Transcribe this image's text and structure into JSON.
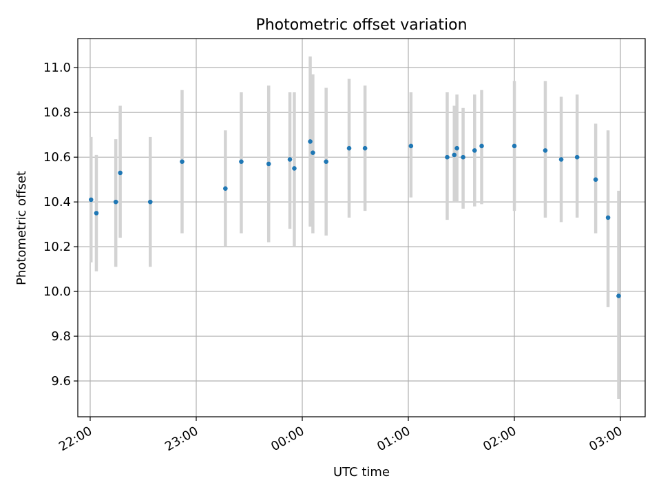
{
  "chart_data": {
    "type": "scatter",
    "title": "Photometric offset variation",
    "xlabel": "UTC time",
    "ylabel": "Photometric offset",
    "xlim": [
      "21:53",
      "03:14"
    ],
    "ylim": [
      9.44,
      11.13
    ],
    "grid": true,
    "x_ticks": [
      "22:00",
      "23:00",
      "00:00",
      "01:00",
      "02:00",
      "03:00"
    ],
    "y_ticks": [
      "9.6",
      "9.8",
      "10.0",
      "10.2",
      "10.4",
      "10.6",
      "10.8",
      "11.0"
    ],
    "colors": {
      "point": "#1f77b4",
      "errorbar": "#d3d3d3",
      "grid": "#b0b0b0"
    },
    "series": [
      {
        "points": [
          {
            "t": "22:00:30",
            "y": 10.41,
            "lo": 10.13,
            "hi": 10.69
          },
          {
            "t": "22:03:30",
            "y": 10.35,
            "lo": 10.09,
            "hi": 10.61
          },
          {
            "t": "22:14:30",
            "y": 10.4,
            "lo": 10.11,
            "hi": 10.68
          },
          {
            "t": "22:17:00",
            "y": 10.53,
            "lo": 10.24,
            "hi": 10.83
          },
          {
            "t": "22:34:00",
            "y": 10.4,
            "lo": 10.11,
            "hi": 10.69
          },
          {
            "t": "22:52:00",
            "y": 10.58,
            "lo": 10.26,
            "hi": 10.9
          },
          {
            "t": "23:16:30",
            "y": 10.46,
            "lo": 10.2,
            "hi": 10.72
          },
          {
            "t": "23:25:30",
            "y": 10.58,
            "lo": 10.26,
            "hi": 10.89
          },
          {
            "t": "23:41:00",
            "y": 10.57,
            "lo": 10.22,
            "hi": 10.92
          },
          {
            "t": "23:53:00",
            "y": 10.59,
            "lo": 10.28,
            "hi": 10.89
          },
          {
            "t": "23:55:30",
            "y": 10.55,
            "lo": 10.2,
            "hi": 10.89
          },
          {
            "t": "00:04:30",
            "y": 10.67,
            "lo": 10.29,
            "hi": 11.05
          },
          {
            "t": "00:06:00",
            "y": 10.62,
            "lo": 10.26,
            "hi": 10.97
          },
          {
            "t": "00:13:30",
            "y": 10.58,
            "lo": 10.25,
            "hi": 10.91
          },
          {
            "t": "00:26:30",
            "y": 10.64,
            "lo": 10.33,
            "hi": 10.95
          },
          {
            "t": "00:35:30",
            "y": 10.64,
            "lo": 10.36,
            "hi": 10.92
          },
          {
            "t": "01:01:30",
            "y": 10.65,
            "lo": 10.42,
            "hi": 10.89
          },
          {
            "t": "01:22:00",
            "y": 10.6,
            "lo": 10.32,
            "hi": 10.89
          },
          {
            "t": "01:26:00",
            "y": 10.61,
            "lo": 10.4,
            "hi": 10.83
          },
          {
            "t": "01:27:30",
            "y": 10.64,
            "lo": 10.4,
            "hi": 10.88
          },
          {
            "t": "01:31:00",
            "y": 10.6,
            "lo": 10.37,
            "hi": 10.82
          },
          {
            "t": "01:37:30",
            "y": 10.63,
            "lo": 10.38,
            "hi": 10.88
          },
          {
            "t": "01:41:30",
            "y": 10.65,
            "lo": 10.39,
            "hi": 10.9
          },
          {
            "t": "02:00:00",
            "y": 10.65,
            "lo": 10.36,
            "hi": 10.94
          },
          {
            "t": "02:17:30",
            "y": 10.63,
            "lo": 10.33,
            "hi": 10.94
          },
          {
            "t": "02:26:30",
            "y": 10.59,
            "lo": 10.31,
            "hi": 10.87
          },
          {
            "t": "02:35:30",
            "y": 10.6,
            "lo": 10.33,
            "hi": 10.88
          },
          {
            "t": "02:46:00",
            "y": 10.5,
            "lo": 10.26,
            "hi": 10.75
          },
          {
            "t": "02:53:00",
            "y": 10.33,
            "lo": 9.93,
            "hi": 10.72
          },
          {
            "t": "02:59:00",
            "y": 9.98,
            "lo": 9.52,
            "hi": 10.45
          }
        ]
      }
    ]
  }
}
